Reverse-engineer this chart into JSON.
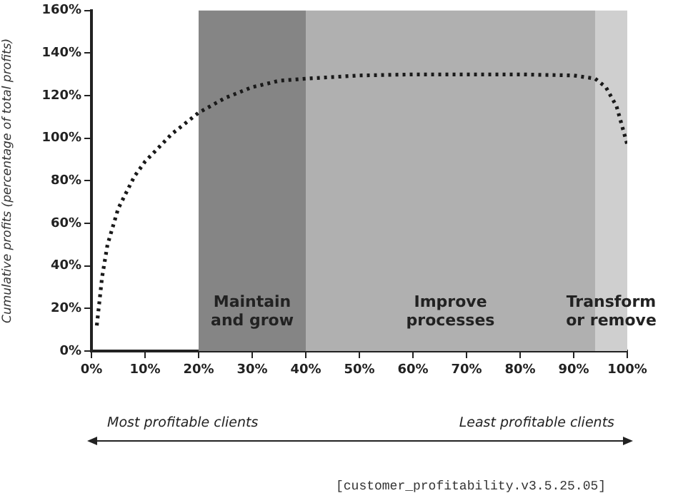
{
  "chart_data": {
    "type": "line",
    "ylabel": "Cumulative profits (percentage of total profits)",
    "x": [
      1,
      2,
      3,
      5,
      8,
      10,
      15,
      20,
      25,
      30,
      35,
      40,
      50,
      60,
      70,
      80,
      90,
      94,
      96,
      98,
      99,
      100
    ],
    "series": [
      {
        "color": "#1a1a1a",
        "values": [
          12,
          35,
          50,
          67,
          82,
          89,
          102,
          112,
          119,
          124,
          127,
          128,
          129.5,
          130,
          130,
          130,
          129.5,
          128,
          124,
          115,
          106,
          97
        ]
      }
    ],
    "xlim": [
      0,
      100
    ],
    "ylim": [
      0,
      160
    ],
    "xticks": [
      {
        "value": 0,
        "label": "0%"
      },
      {
        "value": 10,
        "label": "10%"
      },
      {
        "value": 20,
        "label": "20%"
      },
      {
        "value": 30,
        "label": "30%"
      },
      {
        "value": 40,
        "label": "40%"
      },
      {
        "value": 50,
        "label": "50%"
      },
      {
        "value": 60,
        "label": "60%"
      },
      {
        "value": 70,
        "label": "70%"
      },
      {
        "value": 80,
        "label": "80%"
      },
      {
        "value": 90,
        "label": "90%"
      },
      {
        "value": 100,
        "label": "100%"
      }
    ],
    "yticks": [
      {
        "value": 0,
        "label": "0%"
      },
      {
        "value": 20,
        "label": "20%"
      },
      {
        "value": 40,
        "label": "40%"
      },
      {
        "value": 60,
        "label": "60%"
      },
      {
        "value": 80,
        "label": "80%"
      },
      {
        "value": 100,
        "label": "100%"
      },
      {
        "value": 120,
        "label": "120%"
      },
      {
        "value": 140,
        "label": "140%"
      },
      {
        "value": 160,
        "label": "160%"
      }
    ],
    "bands": [
      {
        "axis": "x",
        "from": 20,
        "to": 40,
        "label": "Maintain\nand grow",
        "color": "#858585"
      },
      {
        "axis": "x",
        "from": 40,
        "to": 94,
        "label": "Improve\nprocesses",
        "color": "#b0b0b0"
      },
      {
        "axis": "x",
        "from": 94,
        "to": 100,
        "label": "Transform\nor remove",
        "color": "#cfcfcf"
      }
    ],
    "annotations": [
      "Most profitable clients",
      "Least profitable clients",
      "[customer_profitability.v3.5.25.05]"
    ],
    "grid": false,
    "legend": false,
    "marker": "none",
    "line_style": "dotted"
  }
}
